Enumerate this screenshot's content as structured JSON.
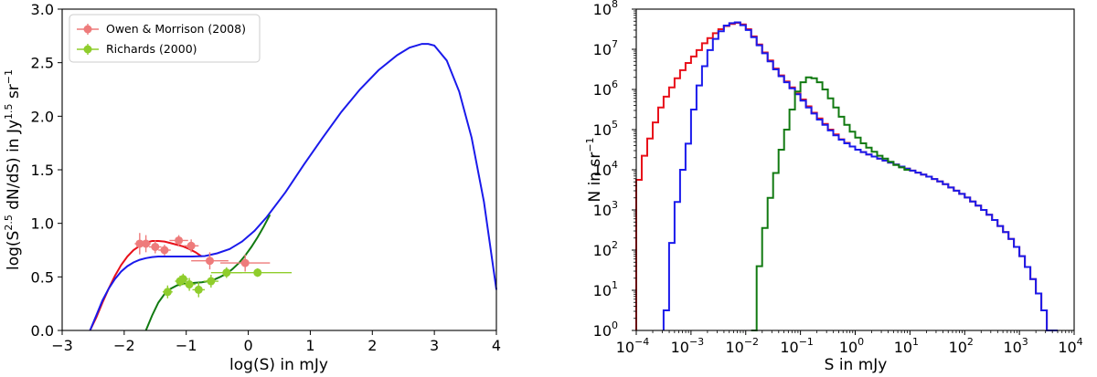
{
  "chart_data": [
    {
      "type": "line",
      "xlabel": "log(S) in mJy",
      "ylabel": "log(S^2.5 dN/dS) in Jy^1.5 sr^-1",
      "ylabel_parts": {
        "a": "log(S",
        "b": "2.5",
        "c": " dN/dS) in Jy",
        "d": "1.5",
        "e": " sr",
        "f": "−1"
      },
      "xlim": [
        -3,
        4
      ],
      "ylim": [
        0,
        3
      ],
      "xticks": [
        -3,
        -2,
        -1,
        0,
        1,
        2,
        3,
        4
      ],
      "xtick_labels": [
        "−3",
        "−2",
        "−1",
        "0",
        "1",
        "2",
        "3",
        "4"
      ],
      "yticks": [
        0,
        0.5,
        1,
        1.5,
        2,
        2.5,
        3
      ],
      "ytick_labels": [
        "0.0",
        "0.5",
        "1.0",
        "1.5",
        "2.0",
        "2.5",
        "3.0"
      ],
      "legend_position": "top-left",
      "series": [
        {
          "color": "#e8101a",
          "x": [
            -2.55,
            -2.45,
            -2.35,
            -2.25,
            -2.15,
            -2.05,
            -1.95,
            -1.85,
            -1.75,
            -1.65,
            -1.55,
            -1.45,
            -1.35,
            -1.25,
            -1.15,
            -1.05,
            -0.95,
            -0.85,
            -0.75
          ],
          "y": [
            0.0,
            0.12,
            0.26,
            0.39,
            0.51,
            0.61,
            0.69,
            0.75,
            0.79,
            0.82,
            0.835,
            0.835,
            0.83,
            0.815,
            0.8,
            0.785,
            0.76,
            0.73,
            0.69
          ]
        },
        {
          "color": "#1a1aeb",
          "x": [
            -2.55,
            -2.45,
            -2.35,
            -2.25,
            -2.15,
            -2.05,
            -1.95,
            -1.85,
            -1.75,
            -1.65,
            -1.55,
            -1.45,
            -1.3,
            -1.1,
            -0.9,
            -0.7,
            -0.5,
            -0.3,
            -0.1,
            0.1,
            0.3,
            0.6,
            0.9,
            1.2,
            1.5,
            1.8,
            2.1,
            2.4,
            2.6,
            2.8,
            2.9,
            3.0,
            3.2,
            3.4,
            3.6,
            3.8,
            4.0
          ],
          "y": [
            0.0,
            0.14,
            0.28,
            0.39,
            0.48,
            0.55,
            0.6,
            0.635,
            0.66,
            0.675,
            0.685,
            0.69,
            0.69,
            0.69,
            0.69,
            0.695,
            0.72,
            0.76,
            0.83,
            0.93,
            1.06,
            1.29,
            1.55,
            1.8,
            2.04,
            2.25,
            2.43,
            2.57,
            2.64,
            2.675,
            2.675,
            2.66,
            2.52,
            2.23,
            1.8,
            1.2,
            0.38
          ]
        },
        {
          "color": "#117a11",
          "x": [
            -1.65,
            -1.55,
            -1.45,
            -1.35,
            -1.25,
            -1.15,
            -1.05,
            -0.95,
            -0.85,
            -0.75,
            -0.65,
            -0.55,
            -0.45,
            -0.35,
            -0.25,
            -0.15,
            -0.05,
            0.05,
            0.15,
            0.25,
            0.35
          ],
          "y": [
            0.0,
            0.14,
            0.26,
            0.34,
            0.39,
            0.42,
            0.435,
            0.44,
            0.445,
            0.45,
            0.46,
            0.475,
            0.5,
            0.53,
            0.575,
            0.63,
            0.7,
            0.78,
            0.87,
            0.97,
            1.08
          ]
        }
      ],
      "points": [
        {
          "name": "Owen & Morrison (2008)",
          "color": "#ee7b7b",
          "x": [
            -1.75,
            -1.65,
            -1.5,
            -1.35,
            -1.12,
            -0.92,
            -0.62,
            -0.05
          ],
          "y": [
            0.81,
            0.81,
            0.78,
            0.75,
            0.84,
            0.79,
            0.65,
            0.63
          ],
          "xerr": [
            0.08,
            0.08,
            0.1,
            0.1,
            0.15,
            0.12,
            0.3,
            0.4
          ],
          "yerr": [
            0.1,
            0.08,
            0.06,
            0.05,
            0.05,
            0.06,
            0.08,
            0.08
          ]
        },
        {
          "name": "Richards (2000)",
          "color": "#8fcd2c",
          "x": [
            -1.3,
            -1.1,
            -1.05,
            -0.95,
            -0.8,
            -0.6,
            -0.35,
            0.15
          ],
          "y": [
            0.36,
            0.46,
            0.48,
            0.43,
            0.38,
            0.46,
            0.54,
            0.54
          ],
          "xerr": [
            0.08,
            0.08,
            0.08,
            0.1,
            0.1,
            0.12,
            0.25,
            0.55
          ],
          "yerr": [
            0.06,
            0.05,
            0.05,
            0.06,
            0.07,
            0.06,
            0.05,
            0.04
          ]
        }
      ]
    },
    {
      "type": "line",
      "xlabel": "S in mJy",
      "ylabel": "N in sr^-1",
      "ylabel_parts": {
        "a": "N in sr",
        "f": "−1"
      },
      "xscale": "log",
      "yscale": "log",
      "xlim": [
        0.0001,
        10000
      ],
      "ylim": [
        1,
        100000000
      ],
      "xtick_bases": [
        "10",
        "10",
        "10",
        "10",
        "10",
        "10",
        "10",
        "10",
        "10"
      ],
      "xtick_exps": [
        "−4",
        "−3",
        "−2",
        "−1",
        "0",
        "1",
        "2",
        "3",
        "4"
      ],
      "ytick_bases": [
        "10",
        "10",
        "10",
        "10",
        "10",
        "10",
        "10",
        "10",
        "10"
      ],
      "ytick_exps": [
        "0",
        "1",
        "2",
        "3",
        "4",
        "5",
        "6",
        "7",
        "8"
      ],
      "log_x_points": [
        -3.95,
        -3.85,
        -3.75,
        -3.65,
        -3.55,
        -3.45,
        -3.35,
        -3.25,
        -3.15,
        -3.05,
        -2.95,
        -2.85,
        -2.75,
        -2.65,
        -2.55,
        -2.45,
        -2.35,
        -2.25,
        -2.15,
        -2.05,
        -1.95,
        -1.85,
        -1.75,
        -1.65,
        -1.55,
        -1.45,
        -1.35,
        -1.25,
        -1.15,
        -1.05,
        -0.95,
        -0.85,
        -0.75,
        -0.65,
        -0.55,
        -0.45,
        -0.35,
        -0.25,
        -0.15,
        -0.05,
        0.05,
        0.15,
        0.25,
        0.35,
        0.45,
        0.55,
        0.65,
        0.75,
        0.85,
        0.95,
        1.05,
        1.15,
        1.25,
        1.35,
        1.45,
        1.55,
        1.65,
        1.75,
        1.85,
        1.95,
        2.05,
        2.15,
        2.25,
        2.35,
        2.45,
        2.55,
        2.65,
        2.75,
        2.85,
        2.95,
        3.05,
        3.15,
        3.25,
        3.35,
        3.45,
        3.55,
        3.65
      ],
      "series": [
        {
          "color": "#e8101a",
          "log_y": [
            3.75,
            4.35,
            4.78,
            5.18,
            5.55,
            5.82,
            6.05,
            6.28,
            6.48,
            6.66,
            6.82,
            6.98,
            7.15,
            7.28,
            7.4,
            7.5,
            7.58,
            7.63,
            7.66,
            7.62,
            7.5,
            7.32,
            7.12,
            6.92,
            6.72,
            6.52,
            6.35,
            6.2,
            6.05,
            5.9,
            5.75,
            5.58,
            5.42,
            5.28,
            5.14,
            5.0,
            4.88,
            4.76,
            4.67,
            4.58,
            4.5,
            4.44,
            4.38,
            4.33,
            4.28,
            4.23,
            4.18,
            4.13,
            4.08,
            4.03,
            3.98,
            3.93,
            3.88,
            3.83,
            3.77,
            3.71,
            3.64,
            3.56,
            3.48,
            3.4,
            3.31,
            3.21,
            3.11,
            3.0,
            2.88,
            2.75,
            2.6,
            2.45,
            2.28,
            2.08,
            1.85,
            1.58,
            1.28,
            0.92,
            0.5,
            0.0,
            0.0
          ]
        },
        {
          "color": "#1a1aeb",
          "log_y": [
            null,
            null,
            null,
            null,
            null,
            0.5,
            2.18,
            3.2,
            4.0,
            4.65,
            5.5,
            6.1,
            6.58,
            6.98,
            7.26,
            7.45,
            7.59,
            7.65,
            7.67,
            7.6,
            7.48,
            7.3,
            7.1,
            6.9,
            6.7,
            6.5,
            6.33,
            6.18,
            6.03,
            5.88,
            5.72,
            5.55,
            5.4,
            5.25,
            5.12,
            4.98,
            4.86,
            4.75,
            4.66,
            4.58,
            4.5,
            4.44,
            4.38,
            4.33,
            4.28,
            4.23,
            4.18,
            4.13,
            4.08,
            4.03,
            3.98,
            3.93,
            3.88,
            3.83,
            3.77,
            3.71,
            3.64,
            3.56,
            3.48,
            3.4,
            3.31,
            3.21,
            3.11,
            3.0,
            2.88,
            2.75,
            2.6,
            2.45,
            2.28,
            2.08,
            1.85,
            1.58,
            1.28,
            0.92,
            0.5,
            0.0,
            0.0
          ]
        },
        {
          "color": "#117a11",
          "log_y": [
            null,
            null,
            null,
            null,
            null,
            null,
            null,
            null,
            null,
            null,
            null,
            null,
            null,
            null,
            null,
            null,
            null,
            null,
            null,
            null,
            null,
            0.0,
            1.6,
            2.55,
            3.3,
            3.92,
            4.5,
            5.0,
            5.5,
            5.95,
            6.18,
            6.3,
            6.28,
            6.18,
            6.0,
            5.78,
            5.55,
            5.32,
            5.12,
            4.95,
            4.8,
            4.66,
            4.55,
            4.45,
            4.35,
            4.28,
            4.2,
            4.12,
            4.06,
            4.0,
            null,
            null,
            null,
            null,
            null,
            null,
            null,
            null,
            null,
            null,
            null,
            null,
            null,
            null,
            null,
            null,
            null,
            null,
            null,
            null,
            null,
            null,
            null,
            null,
            null,
            null,
            null
          ]
        }
      ]
    }
  ]
}
